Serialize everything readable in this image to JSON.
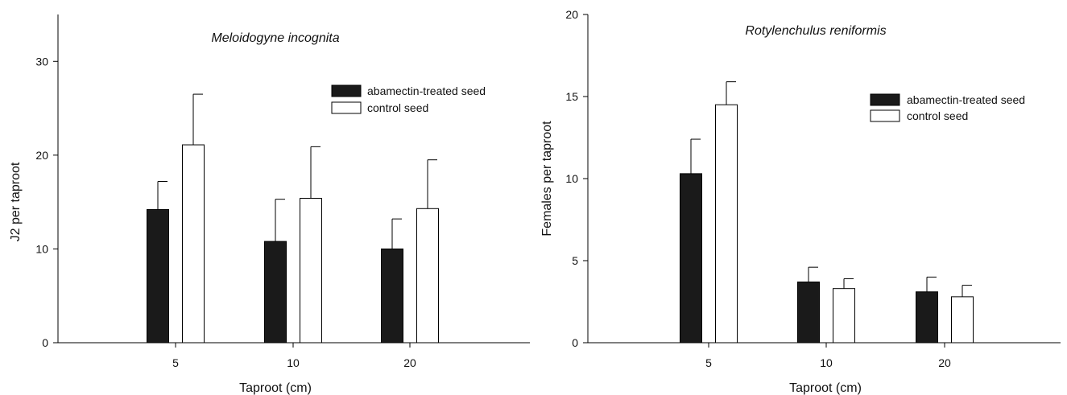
{
  "colors": {
    "treated": "#1a1a1a",
    "control": "#ffffff",
    "stroke": "#000000"
  },
  "chart_data": [
    {
      "type": "bar",
      "title": "Meloidogyne incognita",
      "xlabel": "Taproot (cm)",
      "ylabel": "J2 per taproot",
      "categories": [
        "5",
        "10",
        "20"
      ],
      "ylim": [
        0,
        35
      ],
      "yticks": [
        "0",
        "10",
        "20",
        "30"
      ],
      "grid": false,
      "legend_position": "top-right",
      "series": [
        {
          "name": "abamectin-treated seed",
          "values": [
            14.2,
            10.8,
            10.0
          ],
          "errors": [
            3.0,
            4.5,
            3.2
          ]
        },
        {
          "name": "control seed",
          "values": [
            21.1,
            15.4,
            14.3
          ],
          "errors": [
            5.4,
            5.5,
            5.2
          ]
        }
      ]
    },
    {
      "type": "bar",
      "title": "Rotylenchulus reniformis",
      "xlabel": "Taproot (cm)",
      "ylabel": "Females per taproot",
      "categories": [
        "5",
        "10",
        "20"
      ],
      "ylim": [
        0,
        20
      ],
      "yticks": [
        "0",
        "5",
        "10",
        "15",
        "20"
      ],
      "grid": false,
      "legend_position": "top-right",
      "series": [
        {
          "name": "abamectin-treated seed",
          "values": [
            10.3,
            3.7,
            3.1
          ],
          "errors": [
            2.1,
            0.9,
            0.9
          ]
        },
        {
          "name": "control seed",
          "values": [
            14.5,
            3.3,
            2.8
          ],
          "errors": [
            1.4,
            0.6,
            0.7
          ]
        }
      ]
    }
  ]
}
